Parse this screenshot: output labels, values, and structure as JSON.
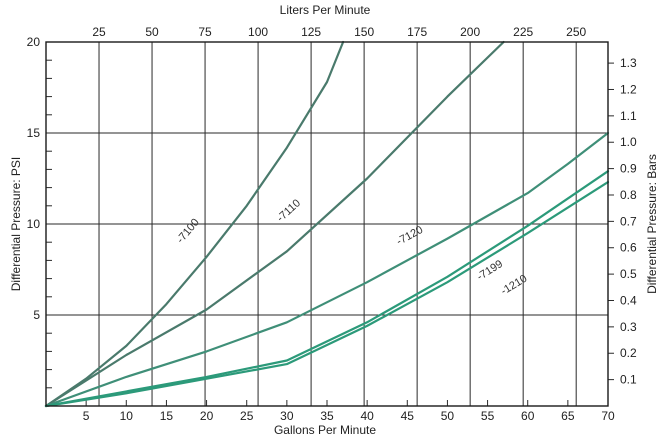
{
  "chart_data": {
    "type": "line",
    "title": "",
    "xlabel": "Gallons Per Minute",
    "ylabel": "Differential Pressure: PSI",
    "x2label": "Liters Per Minute",
    "y2label": "Differential Pressure: Bars",
    "xlim": [
      0,
      70
    ],
    "ylim": [
      0,
      20
    ],
    "x2lim": [
      0,
      265
    ],
    "y2lim": [
      0,
      1.38
    ],
    "x_ticks": [
      5,
      10,
      15,
      20,
      25,
      30,
      35,
      40,
      45,
      50,
      55,
      60,
      65,
      70
    ],
    "y_ticks": [
      5,
      10,
      15,
      20
    ],
    "x2_ticks": [
      25,
      50,
      75,
      100,
      125,
      150,
      175,
      200,
      225,
      250
    ],
    "y2_ticks": [
      0.1,
      0.2,
      0.3,
      0.4,
      0.5,
      0.6,
      0.7,
      0.8,
      0.9,
      1.0,
      1.1,
      1.2,
      1.3
    ],
    "grid": true,
    "series": [
      {
        "name": "7100",
        "color": "#4a7a6c",
        "label": "-7100",
        "label_at": [
          18,
          9.5
        ],
        "x": [
          0,
          5,
          10,
          15,
          20,
          25,
          30,
          35,
          37
        ],
        "y": [
          0,
          1.5,
          3.3,
          5.6,
          8.2,
          11.0,
          14.2,
          17.8,
          20
        ]
      },
      {
        "name": "7110",
        "color": "#4a7a6c",
        "label": "-7110",
        "label_at": [
          30.5,
          10.6
        ],
        "x": [
          0,
          10,
          20,
          30,
          40,
          50,
          57
        ],
        "y": [
          0,
          2.8,
          5.3,
          8.5,
          12.5,
          17.0,
          20
        ]
      },
      {
        "name": "7120",
        "color": "#3f8f78",
        "label": "-7120",
        "label_at": [
          45.5,
          9.2
        ],
        "x": [
          0,
          10,
          20,
          30,
          40,
          50,
          60,
          65,
          70
        ],
        "y": [
          0,
          1.6,
          3.0,
          4.6,
          6.8,
          9.2,
          11.7,
          13.3,
          15.0
        ]
      },
      {
        "name": "7199",
        "color": "#2c9a7a",
        "label": "-7199",
        "label_at": [
          55.5,
          7.3
        ],
        "x": [
          0,
          10,
          20,
          30,
          40,
          50,
          60,
          70
        ],
        "y": [
          0,
          0.8,
          1.6,
          2.5,
          4.6,
          7.1,
          9.9,
          12.9
        ]
      },
      {
        "name": "1210",
        "color": "#2c9a7a",
        "label": "-1210",
        "label_at": [
          58.5,
          6.5
        ],
        "x": [
          0,
          10,
          20,
          30,
          40,
          50,
          60,
          70
        ],
        "y": [
          0,
          0.7,
          1.5,
          2.3,
          4.4,
          6.8,
          9.5,
          12.3
        ]
      }
    ]
  }
}
